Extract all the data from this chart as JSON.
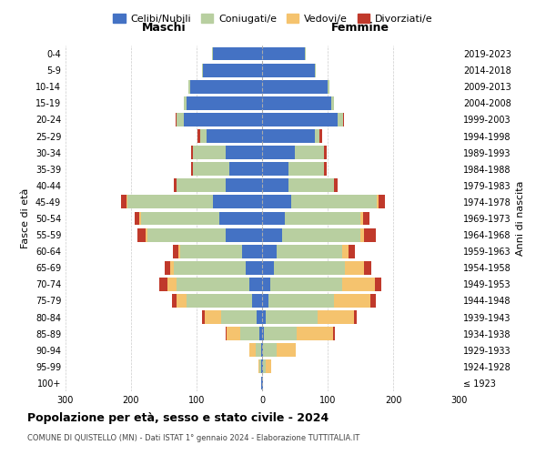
{
  "age_groups": [
    "100+",
    "95-99",
    "90-94",
    "85-89",
    "80-84",
    "75-79",
    "70-74",
    "65-69",
    "60-64",
    "55-59",
    "50-54",
    "45-49",
    "40-44",
    "35-39",
    "30-34",
    "25-29",
    "20-24",
    "15-19",
    "10-14",
    "5-9",
    "0-4"
  ],
  "birth_years": [
    "≤ 1923",
    "1924-1928",
    "1929-1933",
    "1934-1938",
    "1939-1943",
    "1944-1948",
    "1949-1953",
    "1954-1958",
    "1959-1963",
    "1964-1968",
    "1969-1973",
    "1974-1978",
    "1979-1983",
    "1984-1988",
    "1989-1993",
    "1994-1998",
    "1999-2003",
    "2004-2008",
    "2009-2013",
    "2014-2018",
    "2019-2023"
  ],
  "colors": {
    "celibi": "#4472c4",
    "coniugati": "#b8cfa0",
    "vedovi": "#f5c36e",
    "divorziati": "#c0392b"
  },
  "maschi": {
    "celibi": [
      1,
      2,
      2,
      4,
      8,
      15,
      20,
      25,
      30,
      55,
      65,
      75,
      55,
      50,
      55,
      85,
      120,
      115,
      110,
      90,
      75
    ],
    "coniugati": [
      0,
      2,
      8,
      30,
      55,
      100,
      110,
      110,
      95,
      120,
      120,
      130,
      75,
      55,
      50,
      10,
      10,
      5,
      3,
      2,
      2
    ],
    "vedovi": [
      0,
      2,
      10,
      20,
      25,
      15,
      15,
      5,
      3,
      3,
      2,
      2,
      0,
      0,
      0,
      0,
      0,
      0,
      0,
      0,
      0
    ],
    "divorziati": [
      0,
      0,
      0,
      2,
      3,
      8,
      12,
      8,
      8,
      12,
      8,
      8,
      5,
      3,
      3,
      3,
      2,
      0,
      0,
      0,
      0
    ]
  },
  "femmine": {
    "celibi": [
      1,
      2,
      2,
      3,
      5,
      10,
      12,
      18,
      22,
      30,
      35,
      45,
      40,
      40,
      50,
      80,
      115,
      105,
      100,
      80,
      65
    ],
    "coniugati": [
      0,
      4,
      20,
      50,
      80,
      100,
      110,
      108,
      100,
      120,
      115,
      130,
      70,
      55,
      45,
      8,
      8,
      5,
      3,
      2,
      2
    ],
    "vedovi": [
      1,
      8,
      30,
      55,
      55,
      55,
      50,
      30,
      10,
      5,
      4,
      3,
      0,
      0,
      0,
      0,
      0,
      0,
      0,
      0,
      0
    ],
    "divorziati": [
      0,
      0,
      0,
      3,
      5,
      8,
      10,
      10,
      10,
      18,
      10,
      10,
      5,
      3,
      3,
      3,
      2,
      0,
      0,
      0,
      0
    ]
  },
  "title": "Popolazione per età, sesso e stato civile - 2024",
  "subtitle": "COMUNE DI QUISTELLO (MN) - Dati ISTAT 1° gennaio 2024 - Elaborazione TUTTITALIA.IT",
  "xlabel_left": "Maschi",
  "xlabel_right": "Femmine",
  "ylabel_left": "Fasce di età",
  "ylabel_right": "Anni di nascita",
  "xlim": 300,
  "legend_labels": [
    "Celibi/Nubili",
    "Coniugati/e",
    "Vedovi/e",
    "Divorziati/e"
  ],
  "background_color": "#ffffff"
}
